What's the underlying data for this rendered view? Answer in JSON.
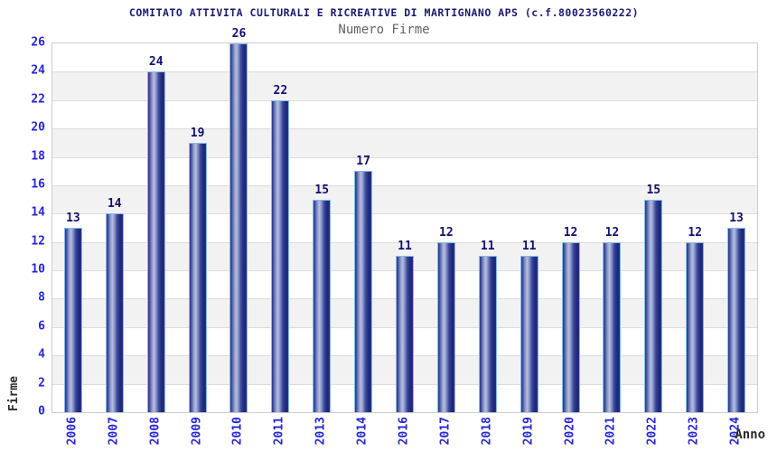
{
  "chart_data": {
    "type": "bar",
    "title": "COMITATO ATTIVITA CULTURALI E RICREATIVE DI MARTIGNANO APS (c.f.80023560222)",
    "subtitle": "Numero Firme",
    "xlabel": "Anno",
    "ylabel": "Firme",
    "categories": [
      "2006",
      "2007",
      "2008",
      "2009",
      "2010",
      "2011",
      "2013",
      "2014",
      "2016",
      "2017",
      "2018",
      "2019",
      "2020",
      "2021",
      "2022",
      "2023",
      "2024"
    ],
    "values": [
      13,
      14,
      24,
      19,
      26,
      22,
      15,
      17,
      11,
      12,
      11,
      11,
      12,
      12,
      15,
      12,
      13
    ],
    "ylim": [
      0,
      26
    ],
    "y_tick_step": 2,
    "y_ticks": [
      0,
      2,
      4,
      6,
      8,
      10,
      12,
      14,
      16,
      18,
      20,
      22,
      24,
      26
    ],
    "legend_position": "none",
    "grid": "alternating-horizontal-bands",
    "colors": {
      "title": "#1a1a70",
      "subtitle": "#636363",
      "tick_label": "#2626cf",
      "value_label": "#10126b",
      "axis_label": "#2b2b2b",
      "bar_outline": "#85b9ec",
      "bar_dark": "#28327f",
      "bar_light": "#b6bfe2",
      "band_gray": "#f2f2f2",
      "plot_border": "#cccccc"
    }
  }
}
